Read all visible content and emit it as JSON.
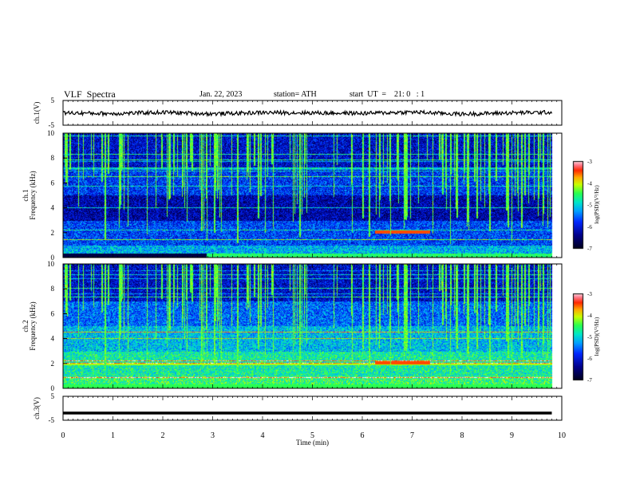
{
  "header": {
    "title": "VLF  Spectra",
    "date": "Jan. 22, 2023",
    "station": "station= ATH",
    "start_ut": "start  UT  =    21: 0   : 1"
  },
  "colors": {
    "background": "#ffffff",
    "spectrogram_low": "#000033",
    "spectrogram_mid": "#00ff66",
    "spectrogram_high": "#ff0000",
    "trace": "#000000"
  },
  "chart_data": [
    {
      "type": "line",
      "name": "ch1-voltage",
      "ylabel": "ch.1(V)",
      "ylim": [
        -5,
        5
      ],
      "yticks": [
        "5",
        "-5"
      ],
      "x": [
        0,
        1,
        2,
        3,
        4,
        5,
        6,
        7,
        8,
        9,
        9.8
      ],
      "y": [
        0.0,
        -0.3,
        0.2,
        -0.4,
        0.1,
        0.0,
        -0.2,
        0.3,
        -0.5,
        0.0,
        0.2
      ]
    },
    {
      "type": "heatmap",
      "name": "ch1-spectrogram",
      "ylabel": "ch.1\nFrequency (kHz)",
      "ylim": [
        0,
        10
      ],
      "yticks": [
        "10",
        "8",
        "6",
        "4",
        "2",
        "0"
      ],
      "colorbar": {
        "label": "log(PSD)(V²/Hz)",
        "ticks": [
          "-3",
          "-4",
          "-5",
          "-6",
          "-7"
        ],
        "range": [
          -7,
          -3
        ]
      }
    },
    {
      "type": "heatmap",
      "name": "ch2-spectrogram",
      "ylabel": "ch.2\nFrequency (kHz)",
      "ylim": [
        0,
        10
      ],
      "yticks": [
        "10",
        "8",
        "6",
        "4",
        "2",
        "0"
      ],
      "colorbar": {
        "label": "log(PSD)(V²/Hz)",
        "ticks": [
          "-3",
          "-4",
          "-5",
          "-6",
          "-7"
        ],
        "range": [
          -7,
          -3
        ]
      }
    },
    {
      "type": "line",
      "name": "ch3-voltage",
      "ylabel": "ch.3(V)",
      "ylim": [
        -5,
        5
      ],
      "yticks": [
        "5",
        "-5"
      ],
      "x": [
        0,
        9.8
      ],
      "y": [
        -2.0,
        -2.0
      ]
    }
  ],
  "xaxis": {
    "label": "Time  (min)",
    "ticks": [
      "0",
      "1",
      "2",
      "3",
      "4",
      "5",
      "6",
      "7",
      "8",
      "9",
      "10"
    ],
    "range": [
      0,
      10
    ]
  }
}
